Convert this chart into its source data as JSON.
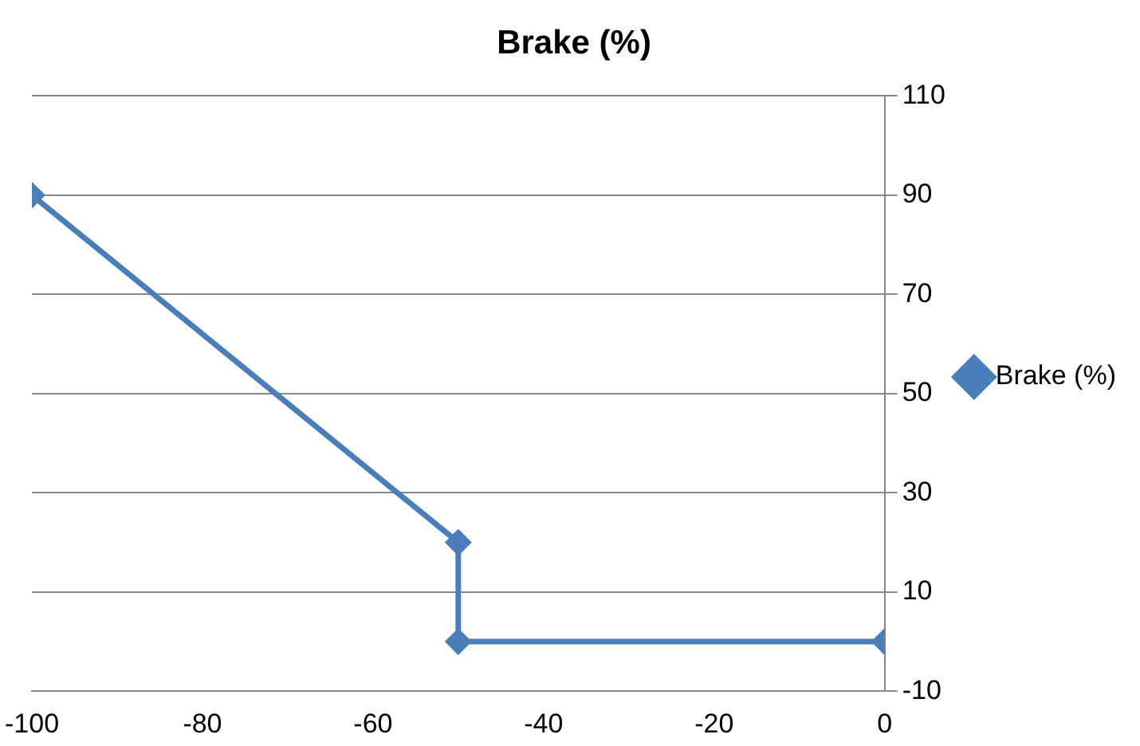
{
  "chart_data": {
    "type": "line",
    "title": "Brake (%)",
    "series": [
      {
        "name": "Brake (%)",
        "color": "#4a7ebb",
        "x": [
          -100,
          -50,
          -50,
          0
        ],
        "values": [
          90,
          20,
          0,
          0
        ]
      }
    ],
    "xlim": [
      -100,
      0
    ],
    "xticks": [
      -100,
      -80,
      -60,
      -40,
      -20,
      0
    ],
    "ylim": [
      -10,
      110
    ],
    "yticks": [
      -10,
      10,
      30,
      50,
      70,
      90,
      110
    ],
    "grid": "y",
    "legend": "right",
    "marker": "diamond",
    "line_style": "solid"
  }
}
